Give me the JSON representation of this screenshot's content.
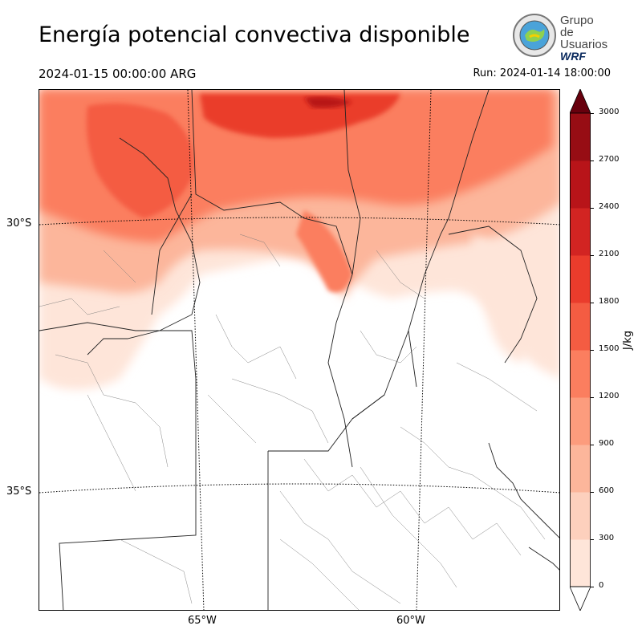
{
  "header": {
    "title": "Energía potencial convectiva disponible",
    "valid_time": "2024-01-15 00:00:00 ARG",
    "run_time": "Run: 2024-01-14 18:00:00"
  },
  "logo": {
    "line1": "Grupo de",
    "line2": "Usuarios",
    "line3": "WRF"
  },
  "map": {
    "lat_labels": [
      "30°S",
      "35°S"
    ],
    "lon_labels": [
      "65°W",
      "60°W"
    ]
  },
  "colorbar": {
    "unit": "J/kg",
    "ticks": [
      "0",
      "300",
      "600",
      "900",
      "1200",
      "1500",
      "1800",
      "2100",
      "2400",
      "2700",
      "3000"
    ],
    "colors": [
      "#fee5d9",
      "#fdd0bd",
      "#fcb69b",
      "#fc9c7d",
      "#fb7e5f",
      "#f45c42",
      "#ea3c2c",
      "#d22422",
      "#b81419",
      "#970d14"
    ],
    "extend_low": "#ffffff",
    "extend_high": "#67000d"
  },
  "chart_data": {
    "type": "heatmap",
    "title": "Energía potencial convectiva disponible",
    "xlabel": "",
    "ylabel": "",
    "units": "J/kg",
    "levels": [
      0,
      300,
      600,
      900,
      1200,
      1500,
      1800,
      2100,
      2400,
      2700,
      3000
    ],
    "lat_ticks": [
      "30°S",
      "35°S"
    ],
    "lon_ticks": [
      "65°W",
      "60°W"
    ]
  }
}
